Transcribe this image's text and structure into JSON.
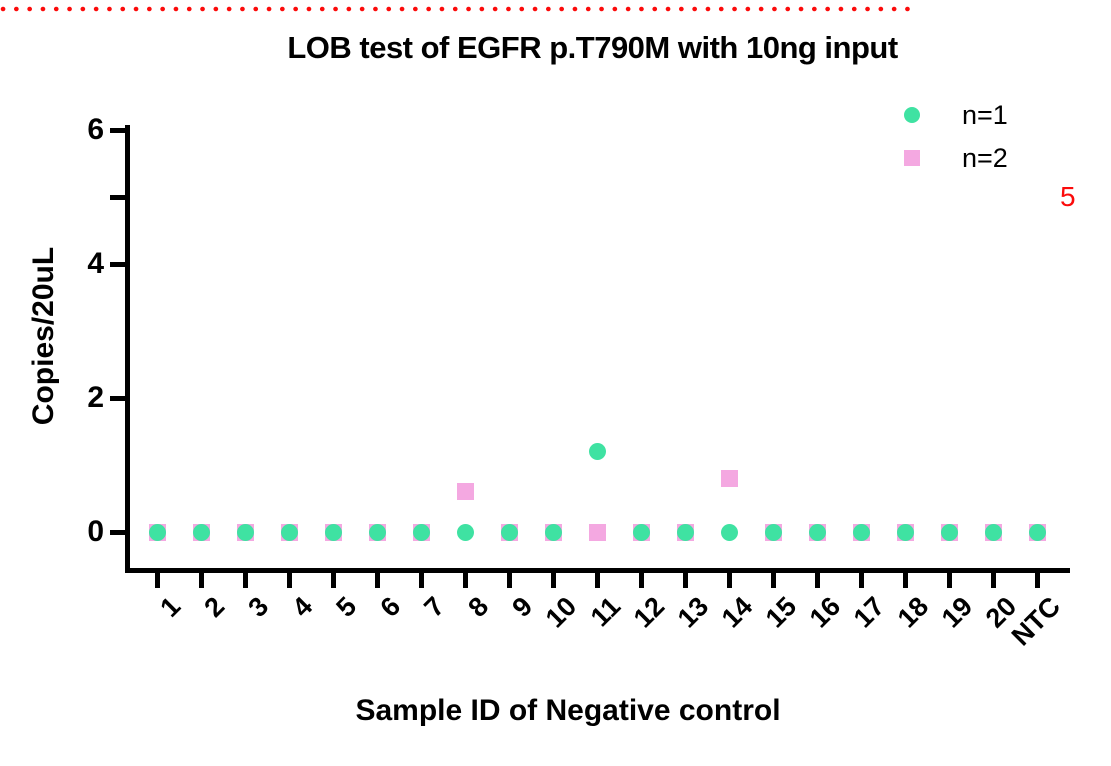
{
  "chart_data": {
    "type": "scatter",
    "title": "LOB test of EGFR p.T790M with 10ng input",
    "xlabel": "Sample ID of Negative control",
    "ylabel": "Copies/20uL",
    "categories": [
      "1",
      "2",
      "3",
      "4",
      "5",
      "6",
      "7",
      "8",
      "9",
      "10",
      "11",
      "12",
      "13",
      "14",
      "15",
      "16",
      "17",
      "18",
      "19",
      "20",
      "NTC"
    ],
    "ylim": [
      0,
      6
    ],
    "yticks": [
      {
        "value": 0,
        "label": "0"
      },
      {
        "value": 2,
        "label": "2"
      },
      {
        "value": 4,
        "label": "4"
      },
      {
        "value": 5,
        "label": ""
      },
      {
        "value": 6,
        "label": "6"
      }
    ],
    "grid": false,
    "legend_position": "top-right",
    "series": [
      {
        "name": "n=1",
        "marker": "circle",
        "color": "#3FE2A2",
        "values": [
          0,
          0,
          0,
          0,
          0,
          0,
          0,
          0,
          0,
          0,
          1.2,
          0,
          0,
          0,
          0,
          0,
          0,
          0,
          0,
          0,
          0
        ]
      },
      {
        "name": "n=2",
        "marker": "square",
        "color": "#F4A8E1",
        "values": [
          0,
          0,
          0,
          0,
          0,
          0,
          0,
          0.6,
          0,
          0,
          0,
          0,
          0,
          0.8,
          0,
          0,
          0,
          0,
          0,
          0,
          0
        ]
      }
    ],
    "reference_line": {
      "value": 5,
      "label": "5",
      "color": "#FB0B0B",
      "style": "dotted"
    }
  },
  "colors": {
    "axis": "#000000",
    "background": "#ffffff"
  }
}
